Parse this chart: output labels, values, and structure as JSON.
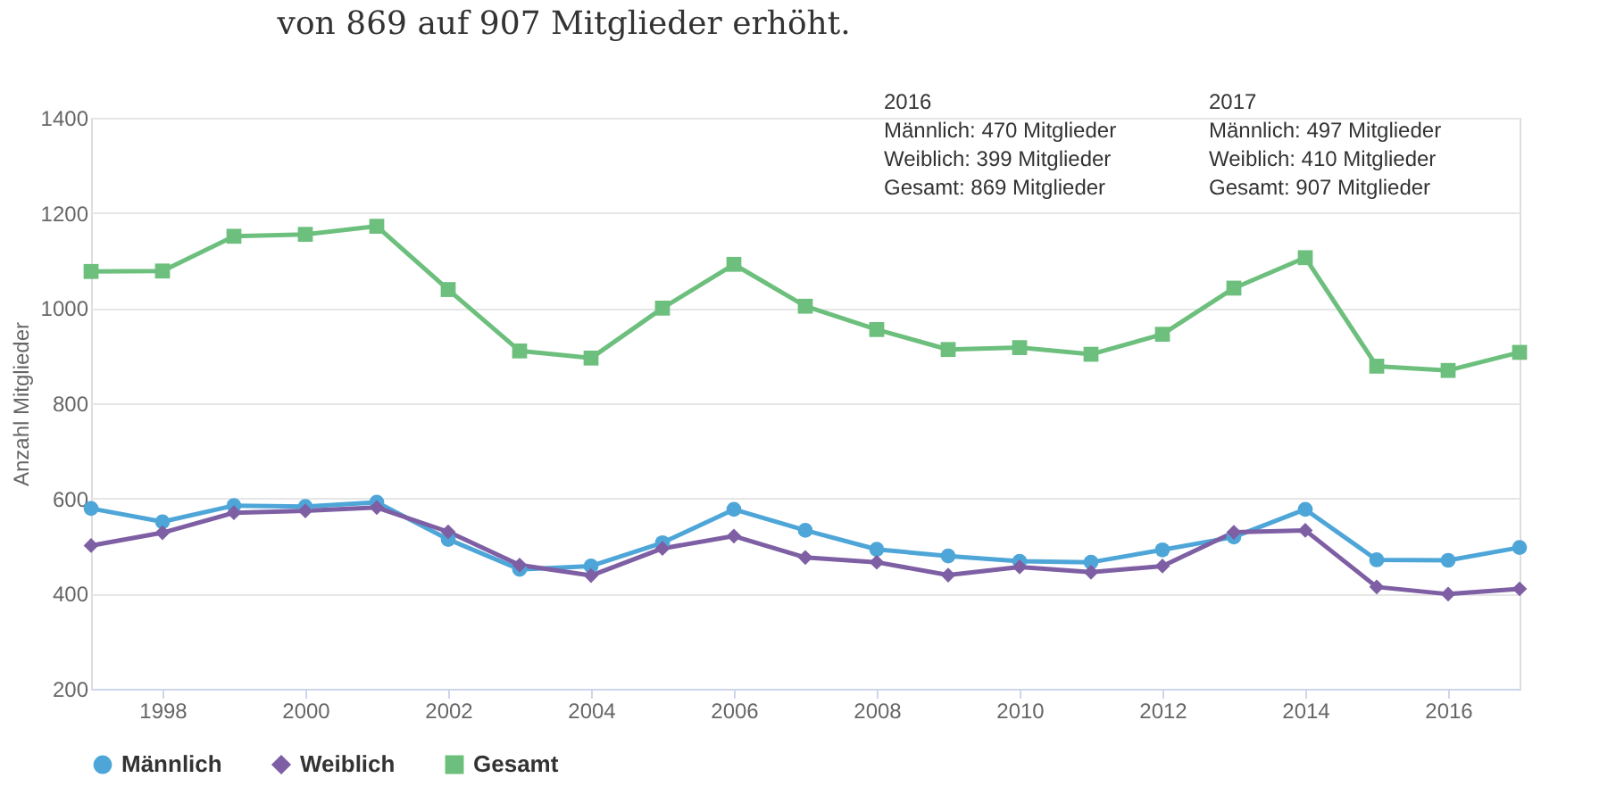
{
  "chart_data": {
    "type": "line",
    "title": "von 869 auf 907 Mitglieder erhöht.",
    "ylabel": "Anzahl Mitglieder",
    "x": [
      1997,
      1998,
      1999,
      2000,
      2001,
      2002,
      2003,
      2004,
      2005,
      2006,
      2007,
      2008,
      2009,
      2010,
      2011,
      2012,
      2013,
      2014,
      2015,
      2016,
      2017
    ],
    "series": [
      {
        "name": "Männlich",
        "color": "#4ea6d8",
        "marker": "circle",
        "values": [
          579,
          551,
          585,
          583,
          592,
          514,
          451,
          458,
          507,
          577,
          533,
          493,
          479,
          468,
          466,
          492,
          519,
          577,
          471,
          470,
          497
        ]
      },
      {
        "name": "Weiblich",
        "color": "#7e5fa4",
        "marker": "diamond",
        "values": [
          501,
          528,
          570,
          574,
          581,
          530,
          460,
          438,
          495,
          521,
          476,
          466,
          439,
          456,
          445,
          458,
          529,
          533,
          414,
          399,
          410
        ]
      },
      {
        "name": "Gesamt",
        "color": "#6cbf7c",
        "marker": "square",
        "values": [
          1077,
          1078,
          1151,
          1155,
          1172,
          1039,
          910,
          895,
          1000,
          1092,
          1004,
          955,
          913,
          917,
          903,
          945,
          1042,
          1106,
          878,
          869,
          907
        ]
      }
    ],
    "xlim": [
      1997,
      2017
    ],
    "xticks": [
      1998,
      2000,
      2002,
      2004,
      2006,
      2008,
      2010,
      2012,
      2014,
      2016
    ],
    "ylim": [
      200,
      1400
    ],
    "yticks": [
      200,
      400,
      600,
      800,
      1000,
      1200,
      1400
    ],
    "grid": "y",
    "legend": "bottom",
    "line_style": "solid",
    "annotations": [
      "2016\nMännlich: 470 Mitglieder\nWeiblich: 399 Mitglieder\nGesamt: 869 Mitglieder",
      "2017\nMännlich: 497 Mitglieder\nWeiblich: 410 Mitglieder\nGesamt: 907 Mitglieder"
    ]
  }
}
